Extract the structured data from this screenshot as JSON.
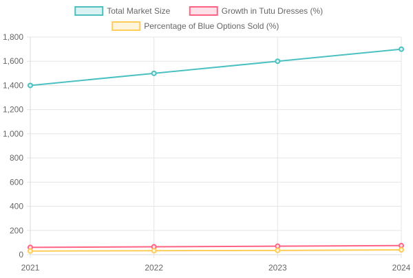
{
  "chart_data": {
    "type": "line",
    "title": "",
    "xlabel": "",
    "ylabel": "",
    "categories": [
      "2021",
      "2022",
      "2023",
      "2024"
    ],
    "ylim": [
      0,
      1800
    ],
    "yticks": [
      0,
      200,
      400,
      600,
      800,
      1000,
      1200,
      1400,
      1600,
      1800
    ],
    "ytick_labels": [
      "0",
      "200",
      "400",
      "600",
      "800",
      "1,000",
      "1,200",
      "1,400",
      "1,600",
      "1,800"
    ],
    "grid": true,
    "legend_position": "top",
    "series": [
      {
        "name": "Total Market Size",
        "values": [
          1400,
          1500,
          1600,
          1700
        ],
        "color": "#4BC0C0",
        "fill": "#DBF2F2"
      },
      {
        "name": "Growth in Tutu Dresses (%)",
        "values": [
          60,
          65,
          70,
          75
        ],
        "color": "#FF6384",
        "fill": "#FFE0E6"
      },
      {
        "name": "Percentage of Blue Options Sold (%)",
        "values": [
          30,
          33,
          35,
          40
        ],
        "color": "#FFCD56",
        "fill": "#FFF5DD"
      }
    ]
  }
}
